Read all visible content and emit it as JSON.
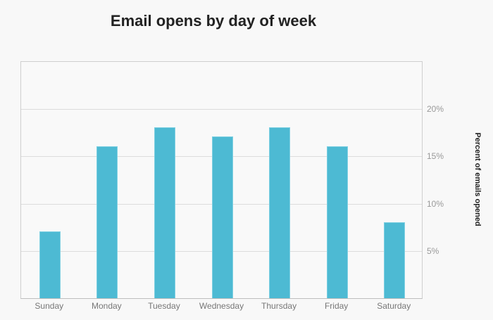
{
  "chart_data": {
    "type": "bar",
    "title": "Email opens by day of week",
    "xlabel": "",
    "ylabel": "Percent of emails opened",
    "categories": [
      "Sunday",
      "Monday",
      "Tuesday",
      "Wednesday",
      "Thursday",
      "Friday",
      "Saturday"
    ],
    "values": [
      7,
      16,
      18,
      17,
      18,
      16,
      8
    ],
    "unit": "%",
    "ylim": [
      0,
      25
    ],
    "yticks": [
      5,
      10,
      15,
      20
    ],
    "ytick_labels": [
      "5%",
      "10%",
      "15%",
      "20%"
    ],
    "yaxis_position": "right",
    "grid": true,
    "legend": null,
    "bar_color": "#4dbad3"
  }
}
